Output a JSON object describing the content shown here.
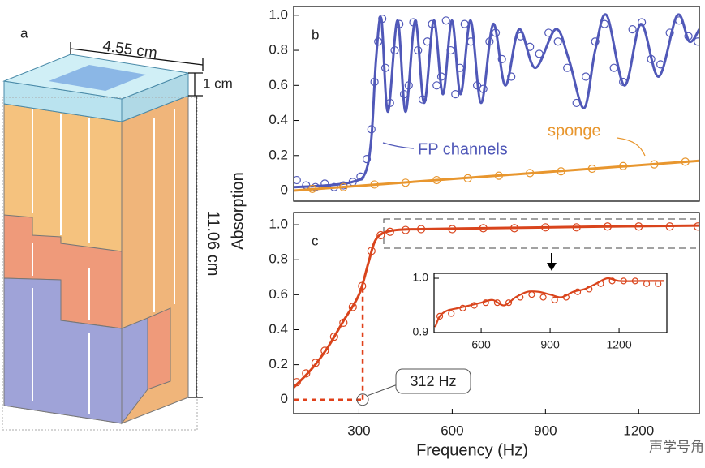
{
  "diagram": {
    "label": "a",
    "width_label": "4.55 cm",
    "cap_label": "1 cm",
    "height_label": "11.06 cm"
  },
  "watermark": "声学号角",
  "chart_data": [
    {
      "type": "line",
      "panel_label": "b",
      "ylabel": "Absorption",
      "xlim": [
        90,
        1395
      ],
      "ylim": [
        -0.06,
        1.05
      ],
      "yticks": [
        0,
        0.2,
        0.4,
        0.6,
        0.8,
        {
          "value": 1,
          "label": "1.0"
        }
      ],
      "series": [
        {
          "name": "FP channels",
          "color": "#5058b8",
          "mode": "line",
          "x": [
            90,
            200,
            280,
            320,
            340,
            355,
            372,
            393,
            424,
            450,
            481,
            510,
            541,
            570,
            599,
            627,
            659,
            693,
            732,
            771,
            815,
            867,
            933,
            975,
            1024,
            1060,
            1097,
            1154,
            1207,
            1264,
            1324,
            1363,
            1395
          ],
          "values": [
            0.02,
            0.03,
            0.05,
            0.1,
            0.3,
            0.75,
            0.98,
            0.45,
            0.97,
            0.45,
            0.97,
            0.5,
            0.97,
            0.55,
            0.97,
            0.55,
            0.97,
            0.5,
            0.95,
            0.6,
            0.92,
            0.7,
            0.92,
            0.75,
            0.47,
            0.8,
            1.0,
            0.6,
            0.95,
            0.65,
            1.0,
            0.85,
            0.92
          ]
        },
        {
          "color": "#5058b8",
          "mode": "markers",
          "x": [
            100,
            130,
            160,
            190,
            220,
            250,
            280,
            305,
            325,
            340,
            350,
            362,
            375,
            385,
            400,
            415,
            430,
            445,
            460,
            475,
            490,
            505,
            520,
            535,
            550,
            565,
            580,
            595,
            610,
            625,
            640,
            660,
            680,
            700,
            720,
            740,
            760,
            790,
            820,
            850,
            880,
            910,
            940,
            970,
            1000,
            1030,
            1060,
            1090,
            1120,
            1150,
            1180,
            1210,
            1240,
            1270,
            1300,
            1330,
            1360,
            1390
          ],
          "values": [
            0.06,
            0.03,
            0.02,
            0.04,
            0.02,
            0.03,
            0.05,
            0.08,
            0.18,
            0.35,
            0.62,
            0.85,
            0.98,
            0.7,
            0.5,
            0.8,
            0.95,
            0.55,
            0.6,
            0.96,
            0.8,
            0.52,
            0.85,
            0.95,
            0.6,
            0.65,
            0.97,
            0.8,
            0.55,
            0.7,
            0.95,
            0.85,
            0.6,
            0.58,
            0.85,
            0.9,
            0.75,
            0.65,
            0.88,
            0.82,
            0.78,
            0.9,
            0.85,
            0.7,
            0.5,
            0.65,
            0.85,
            0.95,
            0.7,
            0.62,
            0.92,
            0.96,
            0.75,
            0.72,
            0.9,
            0.97,
            0.88,
            0.85
          ]
        },
        {
          "name": "sponge",
          "color": "#e8962e",
          "mode": "line",
          "x": [
            90,
            1395
          ],
          "values": [
            0.0,
            0.17
          ]
        },
        {
          "color": "#e8962e",
          "mode": "markers",
          "x": [
            150,
            250,
            350,
            450,
            550,
            650,
            750,
            850,
            950,
            1050,
            1150,
            1250,
            1350
          ],
          "values": [
            0.01,
            0.02,
            0.035,
            0.045,
            0.06,
            0.07,
            0.085,
            0.1,
            0.11,
            0.125,
            0.14,
            0.15,
            0.165
          ]
        }
      ]
    },
    {
      "type": "line",
      "panel_label": "c",
      "xlabel": "Frequency (Hz)",
      "xlim": [
        90,
        1395
      ],
      "ylim": [
        -0.08,
        1.07
      ],
      "xticks": [
        300,
        600,
        900,
        1200
      ],
      "yticks": [
        0,
        0.2,
        0.4,
        0.6,
        0.8,
        {
          "value": 1,
          "label": "1.0"
        }
      ],
      "marker": {
        "value": 312,
        "label": "312 Hz"
      },
      "series": [
        {
          "color": "#d9441c",
          "mode": "line",
          "x": [
            90,
            150,
            200,
            250,
            300,
            330,
            350,
            375,
            420,
            500,
            700,
            900,
            1100,
            1395
          ],
          "values": [
            0.07,
            0.18,
            0.3,
            0.45,
            0.6,
            0.78,
            0.9,
            0.95,
            0.97,
            0.975,
            0.98,
            0.985,
            0.99,
            0.995
          ]
        },
        {
          "color": "#d9441c",
          "mode": "markers",
          "x": [
            100,
            130,
            160,
            190,
            220,
            250,
            280,
            310,
            340,
            370,
            400,
            450,
            500,
            600,
            700,
            800,
            900,
            1000,
            1100,
            1200,
            1300,
            1390
          ],
          "values": [
            0.1,
            0.15,
            0.21,
            0.28,
            0.36,
            0.44,
            0.53,
            0.65,
            0.85,
            0.94,
            0.96,
            0.97,
            0.975,
            0.975,
            0.98,
            0.98,
            0.985,
            0.985,
            0.99,
            0.99,
            0.99,
            0.99
          ]
        }
      ]
    },
    {
      "type": "line",
      "inset": true,
      "xlim": [
        395,
        1408
      ],
      "ylim": [
        0.9,
        1.009
      ],
      "xticks": [
        600,
        900,
        1200
      ],
      "yticks": [
        0.9,
        {
          "value": 1,
          "label": "1.0"
        }
      ],
      "series": [
        {
          "color": "#d9441c",
          "mode": "line",
          "x": [
            400,
            420,
            450,
            500,
            550,
            600,
            650,
            700,
            750,
            800,
            850,
            900,
            950,
            1000,
            1050,
            1100,
            1150,
            1200,
            1300,
            1395
          ],
          "values": [
            0.91,
            0.93,
            0.94,
            0.945,
            0.95,
            0.955,
            0.96,
            0.95,
            0.965,
            0.975,
            0.975,
            0.97,
            0.965,
            0.975,
            0.98,
            0.99,
            1.0,
            0.995,
            0.995,
            0.995
          ]
        },
        {
          "color": "#d9441c",
          "mode": "markers",
          "x": [
            420,
            470,
            520,
            570,
            620,
            670,
            720,
            770,
            820,
            870,
            920,
            970,
            1020,
            1070,
            1120,
            1170,
            1220,
            1270,
            1320,
            1370
          ],
          "values": [
            0.93,
            0.935,
            0.945,
            0.95,
            0.955,
            0.955,
            0.955,
            0.965,
            0.97,
            0.965,
            0.96,
            0.965,
            0.975,
            0.98,
            0.99,
            0.995,
            0.995,
            0.995,
            0.99,
            0.99
          ]
        }
      ]
    }
  ]
}
